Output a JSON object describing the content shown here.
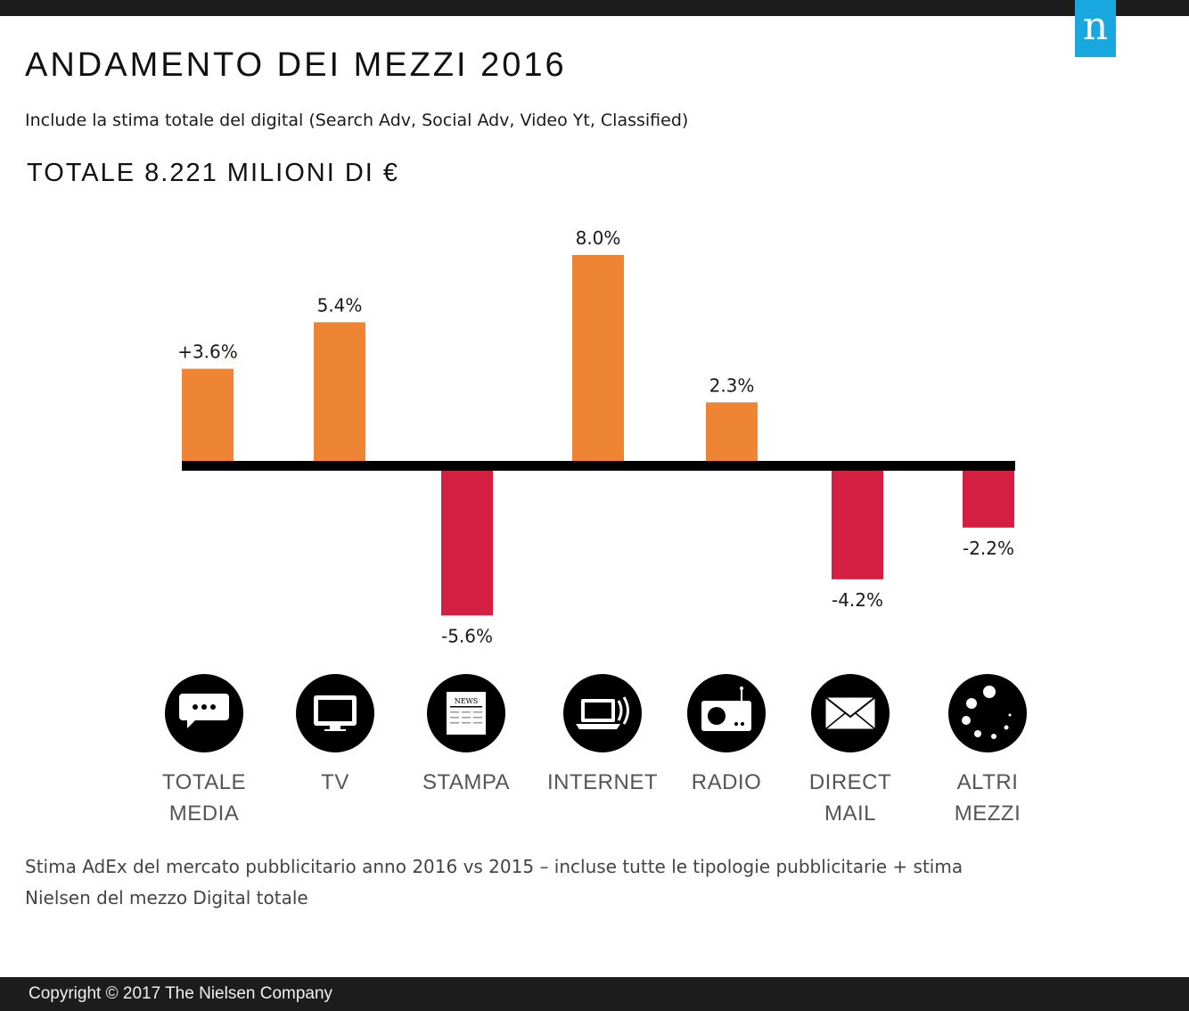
{
  "header": {
    "logo_letter": "n",
    "title": "ANDAMENTO DEI MEZZI 2016",
    "subtitle": "Include la stima totale del digital (Search Adv, Social Adv, Video Yt, Classified)",
    "total": "TOTALE 8.221 MILIONI DI €"
  },
  "chart_data": {
    "type": "bar",
    "categories": [
      "TOTALE MEDIA",
      "TV",
      "STAMPA",
      "INTERNET",
      "RADIO",
      "DIRECT MAIL",
      "ALTRI MEZZI"
    ],
    "category_lines": [
      [
        "TOTALE",
        "MEDIA"
      ],
      [
        "TV"
      ],
      [
        "STAMPA"
      ],
      [
        "INTERNET"
      ],
      [
        "RADIO"
      ],
      [
        "DIRECT",
        "MAIL"
      ],
      [
        "ALTRI",
        "MEZZI"
      ]
    ],
    "values": [
      3.6,
      5.4,
      -5.6,
      8.0,
      2.3,
      -4.2,
      -2.2
    ],
    "data_labels": [
      "+3.6%",
      "5.4%",
      "-5.6%",
      "8.0%",
      "2.3%",
      "-4.2%",
      "-2.2%"
    ],
    "icons": [
      "speech-bubble-icon",
      "tv-icon",
      "newspaper-icon",
      "laptop-icon",
      "radio-icon",
      "envelope-icon",
      "dots-icon"
    ],
    "colors": {
      "positive": "#ee8535",
      "negative": "#d41f42",
      "axis": "#000000"
    },
    "title": "ANDAMENTO DEI MEZZI 2016",
    "xlabel": "",
    "ylabel": "",
    "grid": false
  },
  "icon_text": {
    "news": "NEWS"
  },
  "footnote": {
    "line1": "Stima AdEx del mercato pubblicitario anno 2016 vs 2015 – incluse tutte le tipologie pubblicitarie + stima",
    "line2": "Nielsen del mezzo Digital totale"
  },
  "footer": {
    "copyright": "Copyright © 2017 The Nielsen Company"
  }
}
